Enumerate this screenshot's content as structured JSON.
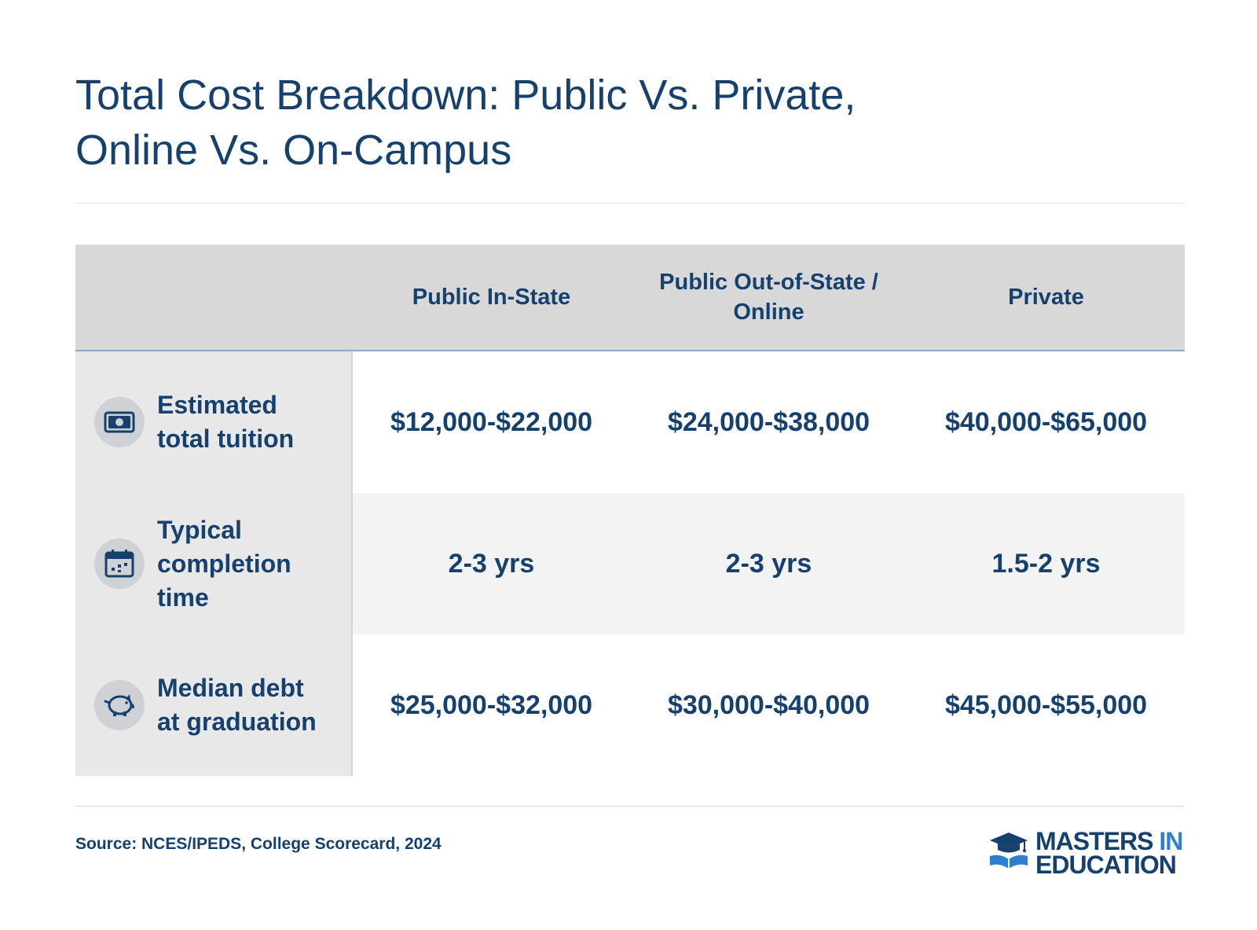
{
  "title": {
    "line1": "Total Cost Breakdown: Public Vs. Private,",
    "line2": "Online Vs. On-Campus"
  },
  "table": {
    "columns": [
      "Public In-State",
      "Public Out-of-State / Online",
      "Private"
    ],
    "rows": [
      {
        "label": "Estimated total tuition",
        "icon": "money-icon",
        "values": [
          "$12,000-$22,000",
          "$24,000-$38,000",
          "$40,000-$65,000"
        ]
      },
      {
        "label": "Typical completion time",
        "icon": "calendar-icon",
        "values": [
          "2-3 yrs",
          "2-3 yrs",
          "1.5-2 yrs"
        ]
      },
      {
        "label": "Median debt at graduation",
        "icon": "piggy-bank-icon",
        "values": [
          "$25,000-$32,000",
          "$30,000-$40,000",
          "$45,000-$55,000"
        ]
      }
    ]
  },
  "source": "Source: NCES/IPEDS, College Scorecard, 2024",
  "logo": {
    "line1_main": "MASTERS",
    "line1_accent": "IN",
    "line2": "EDUCATION",
    "icon": "graduation-cap-book-icon"
  },
  "colors": {
    "text": "#16406e",
    "accent": "#2f7fd0",
    "header_bg": "#d8d8d8",
    "stub_bg": "#e8e8e8"
  }
}
